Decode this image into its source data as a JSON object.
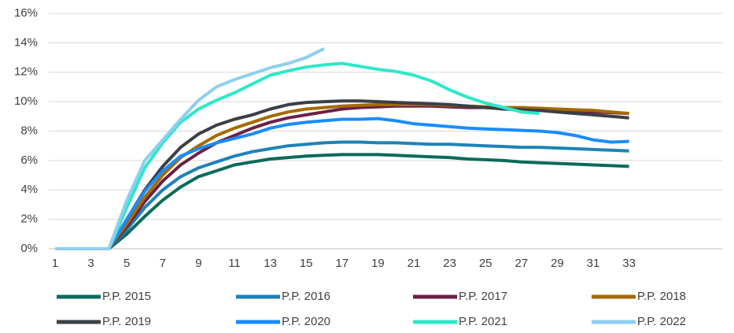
{
  "chart_data": {
    "type": "line",
    "categories": [
      "1",
      null,
      "3",
      null,
      "5",
      null,
      "7",
      null,
      "9",
      null,
      "11",
      null,
      "13",
      null,
      "15",
      null,
      "17",
      null,
      "19",
      null,
      "21",
      null,
      "23",
      null,
      "25",
      null,
      "27",
      null,
      "29",
      null,
      "31",
      null,
      "33"
    ],
    "ylim": [
      0,
      16
    ],
    "yticks": [
      {
        "value": 0,
        "label": "0%"
      },
      {
        "value": 2,
        "label": "2%"
      },
      {
        "value": 4,
        "label": "4%"
      },
      {
        "value": 6,
        "label": "6%"
      },
      {
        "value": 8,
        "label": "8%"
      },
      {
        "value": 10,
        "label": "10%"
      },
      {
        "value": 12,
        "label": "12%"
      },
      {
        "value": 14,
        "label": "14%"
      },
      {
        "value": 16,
        "label": "16%"
      }
    ],
    "grid": true,
    "legend": "bottom",
    "series": [
      {
        "name": "P.P. 2015",
        "color": "#0b6b5a",
        "values": [
          0,
          0,
          0,
          0,
          1.0,
          2.2,
          3.3,
          4.2,
          4.9,
          5.3,
          5.7,
          5.9,
          6.1,
          6.2,
          6.3,
          6.35,
          6.4,
          6.4,
          6.4,
          6.35,
          6.3,
          6.25,
          6.2,
          6.1,
          6.05,
          6.0,
          5.9,
          5.85,
          5.8,
          5.75,
          5.7,
          5.65,
          5.6
        ]
      },
      {
        "name": "P.P. 2016",
        "color": "#1f82b8",
        "values": [
          0,
          0,
          0,
          0,
          1.3,
          2.8,
          4.0,
          4.9,
          5.5,
          5.9,
          6.3,
          6.6,
          6.8,
          7.0,
          7.1,
          7.2,
          7.25,
          7.25,
          7.2,
          7.2,
          7.15,
          7.1,
          7.1,
          7.05,
          7.0,
          6.95,
          6.9,
          6.9,
          6.85,
          6.8,
          6.75,
          6.7,
          6.65
        ]
      },
      {
        "name": "P.P. 2017",
        "color": "#6b2148",
        "values": [
          0,
          0,
          0,
          0,
          1.5,
          3.2,
          4.6,
          5.7,
          6.5,
          7.2,
          7.7,
          8.2,
          8.6,
          8.9,
          9.1,
          9.3,
          9.5,
          9.6,
          9.65,
          9.7,
          9.7,
          9.7,
          9.65,
          9.6,
          9.6,
          9.55,
          9.5,
          9.45,
          9.4,
          9.35,
          9.3,
          9.25,
          9.2
        ]
      },
      {
        "name": "P.P. 2018",
        "color": "#a56a00",
        "values": [
          0,
          0,
          0,
          0,
          1.7,
          3.5,
          5.0,
          6.2,
          7.0,
          7.7,
          8.2,
          8.6,
          9.0,
          9.3,
          9.5,
          9.6,
          9.7,
          9.75,
          9.8,
          9.8,
          9.8,
          9.8,
          9.75,
          9.7,
          9.65,
          9.6,
          9.6,
          9.55,
          9.5,
          9.45,
          9.4,
          9.3,
          9.2
        ]
      },
      {
        "name": "P.P. 2019",
        "color": "#3b3f46",
        "values": [
          0,
          0,
          0,
          0,
          2.0,
          4.0,
          5.6,
          6.9,
          7.8,
          8.4,
          8.8,
          9.1,
          9.5,
          9.8,
          9.95,
          10.0,
          10.05,
          10.05,
          10.0,
          9.95,
          9.9,
          9.85,
          9.8,
          9.7,
          9.6,
          9.5,
          9.45,
          9.4,
          9.3,
          9.2,
          9.1,
          9.0,
          8.9
        ]
      },
      {
        "name": "P.P. 2020",
        "color": "#1a8cff",
        "values": [
          0,
          0,
          0,
          0,
          2.0,
          3.9,
          5.3,
          6.3,
          6.8,
          7.2,
          7.5,
          7.8,
          8.2,
          8.45,
          8.6,
          8.7,
          8.8,
          8.8,
          8.85,
          8.7,
          8.5,
          8.4,
          8.3,
          8.2,
          8.15,
          8.1,
          8.05,
          8.0,
          7.9,
          7.7,
          7.4,
          7.25,
          7.3
        ]
      },
      {
        "name": "P.P. 2021",
        "color": "#2ee8c8",
        "values": [
          0,
          0,
          0,
          0,
          2.8,
          5.5,
          7.2,
          8.6,
          9.5,
          10.1,
          10.6,
          11.2,
          11.8,
          12.1,
          12.35,
          12.5,
          12.6,
          12.4,
          12.2,
          12.05,
          11.8,
          11.4,
          10.8,
          10.3,
          9.9,
          9.6,
          9.3,
          9.2,
          null,
          null,
          null,
          null,
          null
        ]
      },
      {
        "name": "P.P. 2022",
        "color": "#8ecfee",
        "values": [
          0,
          0,
          0,
          0,
          3.3,
          6.0,
          7.4,
          8.8,
          10.1,
          11.0,
          11.5,
          11.9,
          12.3,
          12.6,
          13.0,
          13.6,
          null,
          null,
          null,
          null,
          null,
          null,
          null,
          null,
          null,
          null,
          null,
          null,
          null,
          null,
          null,
          null,
          null
        ]
      }
    ]
  }
}
